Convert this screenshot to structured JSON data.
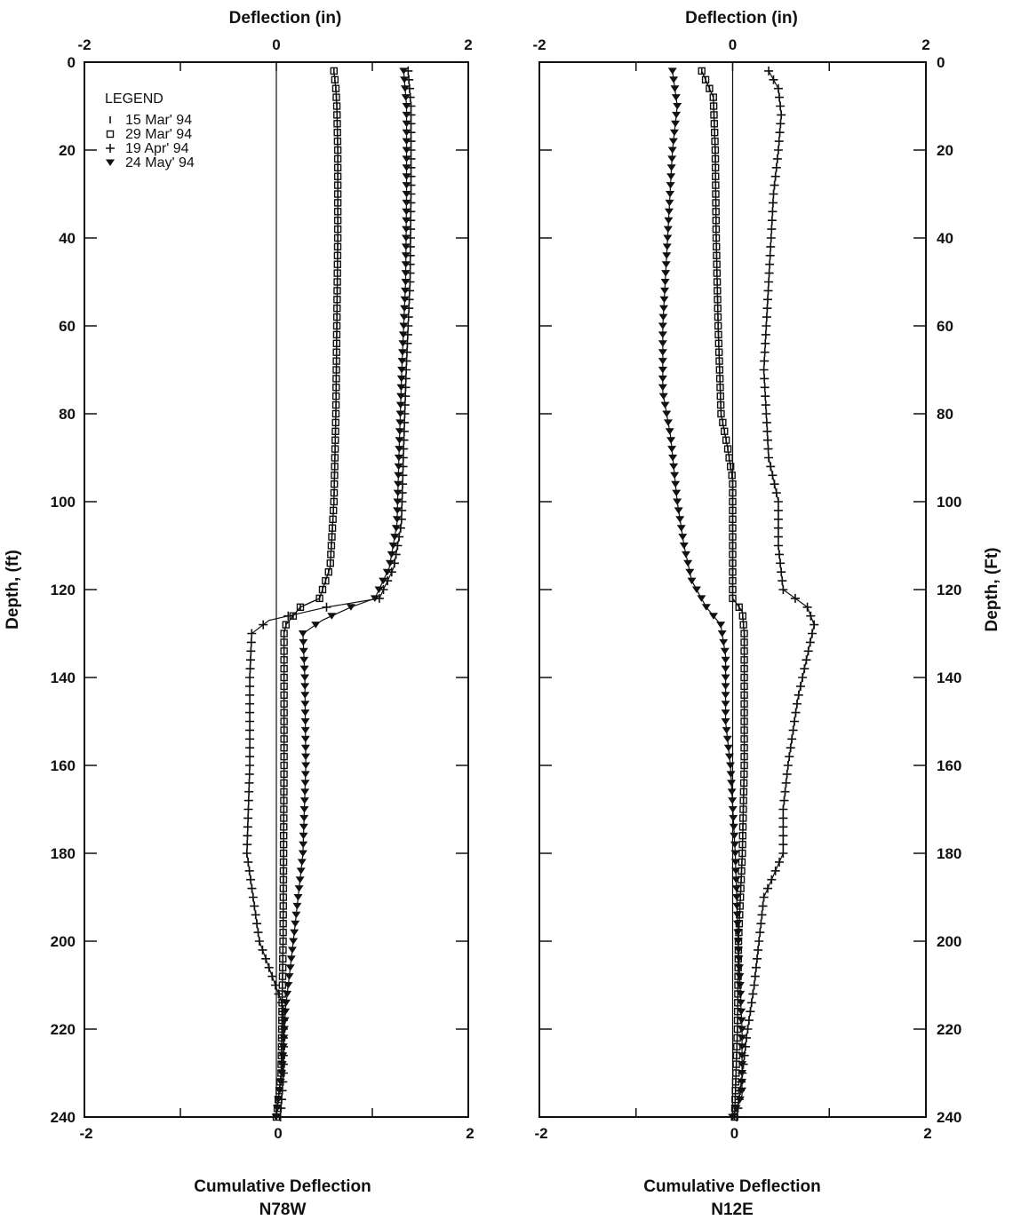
{
  "chart_data": [
    {
      "type": "scatter",
      "panel": "left",
      "title": "",
      "top_xlabel": "Deflection  (in)",
      "xlabel": "Cumulative Deflection",
      "direction": "N78W",
      "ylabel": "Depth,  (ft)",
      "xlim": [
        -2,
        2
      ],
      "ylim": [
        0,
        240
      ],
      "y_inverted": true,
      "x_ticks": [
        "-2",
        "0",
        "2"
      ],
      "y_ticks": [
        "0",
        "20",
        "40",
        "60",
        "80",
        "100",
        "120",
        "140",
        "160",
        "180",
        "200",
        "220",
        "240"
      ],
      "legend": {
        "title": "LEGEND",
        "placement": "top-left",
        "entries": [
          {
            "marker": "tick",
            "label": "15 Mar' 94"
          },
          {
            "marker": "square",
            "label": "29 Mar' 94"
          },
          {
            "marker": "plus",
            "label": "19 Apr' 94"
          },
          {
            "marker": "triangle-down",
            "label": "24 May' 94"
          }
        ]
      },
      "series": [
        {
          "marker": "tick",
          "points": [
            [
              0.6,
              2
            ],
            [
              0.62,
              6
            ],
            [
              0.63,
              10
            ],
            [
              0.64,
              20
            ],
            [
              0.64,
              40
            ],
            [
              0.63,
              60
            ],
            [
              0.62,
              80
            ],
            [
              0.6,
              100
            ],
            [
              0.56,
              115
            ],
            [
              0.45,
              122
            ],
            [
              0.25,
              124
            ],
            [
              0.1,
              128
            ],
            [
              0.08,
              130
            ],
            [
              0.08,
              160
            ],
            [
              0.07,
              200
            ],
            [
              0.05,
              230
            ],
            [
              0.0,
              240
            ]
          ]
        },
        {
          "marker": "square",
          "points": [
            [
              0.6,
              2
            ],
            [
              0.62,
              6
            ],
            [
              0.63,
              10
            ],
            [
              0.64,
              20
            ],
            [
              0.64,
              40
            ],
            [
              0.63,
              60
            ],
            [
              0.62,
              80
            ],
            [
              0.6,
              100
            ],
            [
              0.56,
              115
            ],
            [
              0.45,
              122
            ],
            [
              0.25,
              124
            ],
            [
              0.1,
              128
            ],
            [
              0.08,
              130
            ],
            [
              0.08,
              160
            ],
            [
              0.07,
              200
            ],
            [
              0.05,
              230
            ],
            [
              0.0,
              240
            ]
          ]
        },
        {
          "marker": "plus",
          "points": [
            [
              1.35,
              2
            ],
            [
              1.38,
              10
            ],
            [
              1.38,
              30
            ],
            [
              1.37,
              50
            ],
            [
              1.33,
              70
            ],
            [
              1.3,
              90
            ],
            [
              1.28,
              105
            ],
            [
              1.2,
              115
            ],
            [
              1.05,
              122
            ],
            [
              0.5,
              124
            ],
            [
              -0.1,
              127
            ],
            [
              -0.28,
              130
            ],
            [
              -0.3,
              140
            ],
            [
              -0.3,
              160
            ],
            [
              -0.33,
              180
            ],
            [
              -0.2,
              200
            ],
            [
              0.05,
              215
            ],
            [
              0.05,
              230
            ],
            [
              0.02,
              240
            ]
          ]
        },
        {
          "marker": "triangle-down",
          "points": [
            [
              1.35,
              2
            ],
            [
              1.38,
              10
            ],
            [
              1.38,
              30
            ],
            [
              1.37,
              50
            ],
            [
              1.33,
              70
            ],
            [
              1.3,
              90
            ],
            [
              1.28,
              105
            ],
            [
              1.2,
              115
            ],
            [
              1.05,
              122
            ],
            [
              0.8,
              124
            ],
            [
              0.5,
              127
            ],
            [
              0.3,
              130
            ],
            [
              0.32,
              140
            ],
            [
              0.33,
              160
            ],
            [
              0.3,
              180
            ],
            [
              0.2,
              200
            ],
            [
              0.12,
              215
            ],
            [
              0.08,
              230
            ],
            [
              0.02,
              240
            ]
          ]
        }
      ]
    },
    {
      "type": "scatter",
      "panel": "right",
      "title": "",
      "top_xlabel": "Deflection  (in)",
      "xlabel": "Cumulative Deflection",
      "direction": "N12E",
      "ylabel": "Depth,  (Ft)",
      "xlim": [
        -2,
        2
      ],
      "ylim": [
        0,
        240
      ],
      "y_inverted": true,
      "x_ticks": [
        "-2",
        "0",
        "2"
      ],
      "y_ticks": [
        "0",
        "20",
        "40",
        "60",
        "80",
        "100",
        "120",
        "140",
        "160",
        "180",
        "200",
        "220",
        "240"
      ],
      "series": [
        {
          "marker": "tick",
          "points": [
            [
              -0.32,
              2
            ],
            [
              -0.2,
              8
            ],
            [
              -0.18,
              20
            ],
            [
              -0.17,
              40
            ],
            [
              -0.15,
              60
            ],
            [
              -0.12,
              80
            ],
            [
              -0.05,
              88
            ],
            [
              0.0,
              95
            ],
            [
              0.0,
              122
            ],
            [
              0.1,
              125
            ],
            [
              0.12,
              130
            ],
            [
              0.12,
              160
            ],
            [
              0.1,
              180
            ],
            [
              0.06,
              200
            ],
            [
              0.05,
              220
            ],
            [
              0.02,
              240
            ]
          ]
        },
        {
          "marker": "square",
          "points": [
            [
              -0.32,
              2
            ],
            [
              -0.2,
              8
            ],
            [
              -0.18,
              20
            ],
            [
              -0.17,
              40
            ],
            [
              -0.15,
              60
            ],
            [
              -0.12,
              80
            ],
            [
              -0.05,
              88
            ],
            [
              0.0,
              95
            ],
            [
              0.0,
              122
            ],
            [
              0.1,
              125
            ],
            [
              0.12,
              130
            ],
            [
              0.12,
              160
            ],
            [
              0.1,
              180
            ],
            [
              0.06,
              200
            ],
            [
              0.05,
              220
            ],
            [
              0.02,
              240
            ]
          ]
        },
        {
          "marker": "plus",
          "points": [
            [
              0.35,
              2
            ],
            [
              0.45,
              6
            ],
            [
              0.48,
              12
            ],
            [
              0.45,
              20
            ],
            [
              0.4,
              30
            ],
            [
              0.35,
              50
            ],
            [
              0.3,
              70
            ],
            [
              0.35,
              90
            ],
            [
              0.45,
              100
            ],
            [
              0.45,
              110
            ],
            [
              0.5,
              120
            ],
            [
              0.75,
              124
            ],
            [
              0.82,
              128
            ],
            [
              0.75,
              135
            ],
            [
              0.65,
              145
            ],
            [
              0.55,
              160
            ],
            [
              0.5,
              170
            ],
            [
              0.5,
              180
            ],
            [
              0.3,
              190
            ],
            [
              0.25,
              200
            ],
            [
              0.2,
              210
            ],
            [
              0.12,
              222
            ],
            [
              0.05,
              235
            ],
            [
              0.02,
              240
            ]
          ]
        },
        {
          "marker": "triangle-down",
          "points": [
            [
              -0.6,
              2
            ],
            [
              -0.55,
              10
            ],
            [
              -0.6,
              20
            ],
            [
              -0.65,
              40
            ],
            [
              -0.7,
              60
            ],
            [
              -0.7,
              75
            ],
            [
              -0.62,
              85
            ],
            [
              -0.55,
              100
            ],
            [
              -0.48,
              110
            ],
            [
              -0.4,
              118
            ],
            [
              -0.25,
              124
            ],
            [
              -0.1,
              128
            ],
            [
              -0.05,
              135
            ],
            [
              -0.05,
              150
            ],
            [
              0.0,
              160
            ],
            [
              0.05,
              180
            ],
            [
              0.08,
              200
            ],
            [
              0.12,
              220
            ],
            [
              0.12,
              235
            ],
            [
              0.02,
              240
            ]
          ]
        }
      ]
    }
  ]
}
